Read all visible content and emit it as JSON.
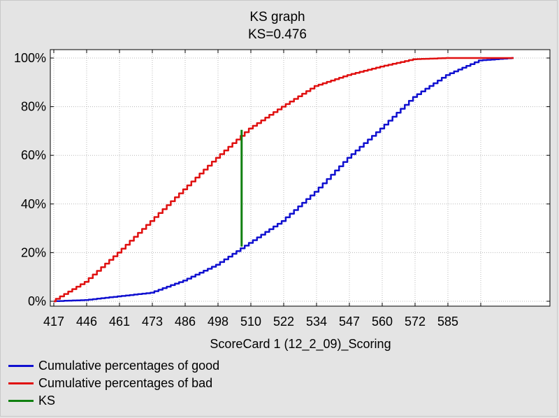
{
  "chart_data": {
    "type": "line",
    "title": "KS graph",
    "subtitle": "KS=0.476",
    "xlabel": "ScoreCard 1 (12_2_09)_Scoring",
    "ylabel": "",
    "x_tick_labels": [
      "417",
      "446",
      "461",
      "473",
      "486",
      "498",
      "510",
      "522",
      "534",
      "547",
      "560",
      "572",
      "585"
    ],
    "y_tick_labels": [
      "0%",
      "20%",
      "40%",
      "60%",
      "80%",
      "100%"
    ],
    "ylim": [
      0,
      100
    ],
    "grid": true,
    "legend_position": "bottom-left",
    "series": [
      {
        "name": "Cumulative percentages of good",
        "color": "#1010d0",
        "x_index": [
          0,
          1,
          2,
          3,
          4,
          5,
          6,
          7,
          8,
          9,
          10,
          11,
          12,
          13,
          14
        ],
        "values": [
          0,
          0.5,
          2,
          3.5,
          8.5,
          15,
          24,
          33,
          45,
          59,
          71,
          84,
          93,
          99,
          100
        ]
      },
      {
        "name": "Cumulative percentages of bad",
        "color": "#e01010",
        "x_index": [
          0,
          1,
          2,
          3,
          4,
          5,
          6,
          7,
          8,
          9,
          10,
          11,
          12,
          13,
          14
        ],
        "values": [
          0,
          8,
          20,
          33,
          46,
          59,
          71,
          80,
          88.5,
          93,
          96.5,
          99.5,
          100,
          100,
          100
        ]
      },
      {
        "name": "KS",
        "color": "#108010",
        "x_index": [
          5.72,
          5.72
        ],
        "values": [
          22.5,
          70.5
        ]
      }
    ]
  }
}
